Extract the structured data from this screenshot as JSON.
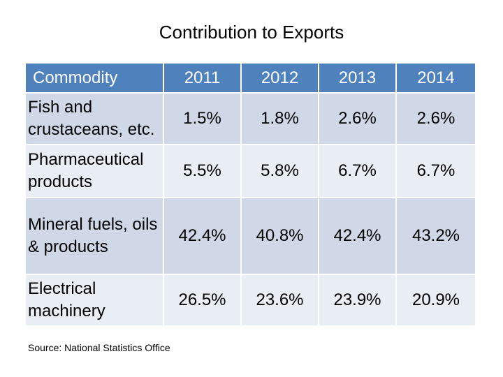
{
  "title": "Contribution to Exports",
  "table": {
    "headers": [
      "Commodity",
      "2011",
      "2012",
      "2013",
      "2014"
    ],
    "rows": [
      {
        "commodity": "Fish and crustaceans, etc.",
        "values": [
          "1.5%",
          "1.8%",
          "2.6%",
          "2.6%"
        ]
      },
      {
        "commodity": "Pharmaceutical products",
        "values": [
          "5.5%",
          "5.8%",
          "6.7%",
          "6.7%"
        ]
      },
      {
        "commodity": "Mineral fuels, oils & products",
        "values": [
          "42.4%",
          "40.8%",
          "42.4%",
          "43.2%"
        ]
      },
      {
        "commodity": "Electrical machinery",
        "values": [
          "26.5%",
          "23.6%",
          "23.9%",
          "20.9%"
        ]
      }
    ]
  },
  "source": "Source: National Statistics Office"
}
